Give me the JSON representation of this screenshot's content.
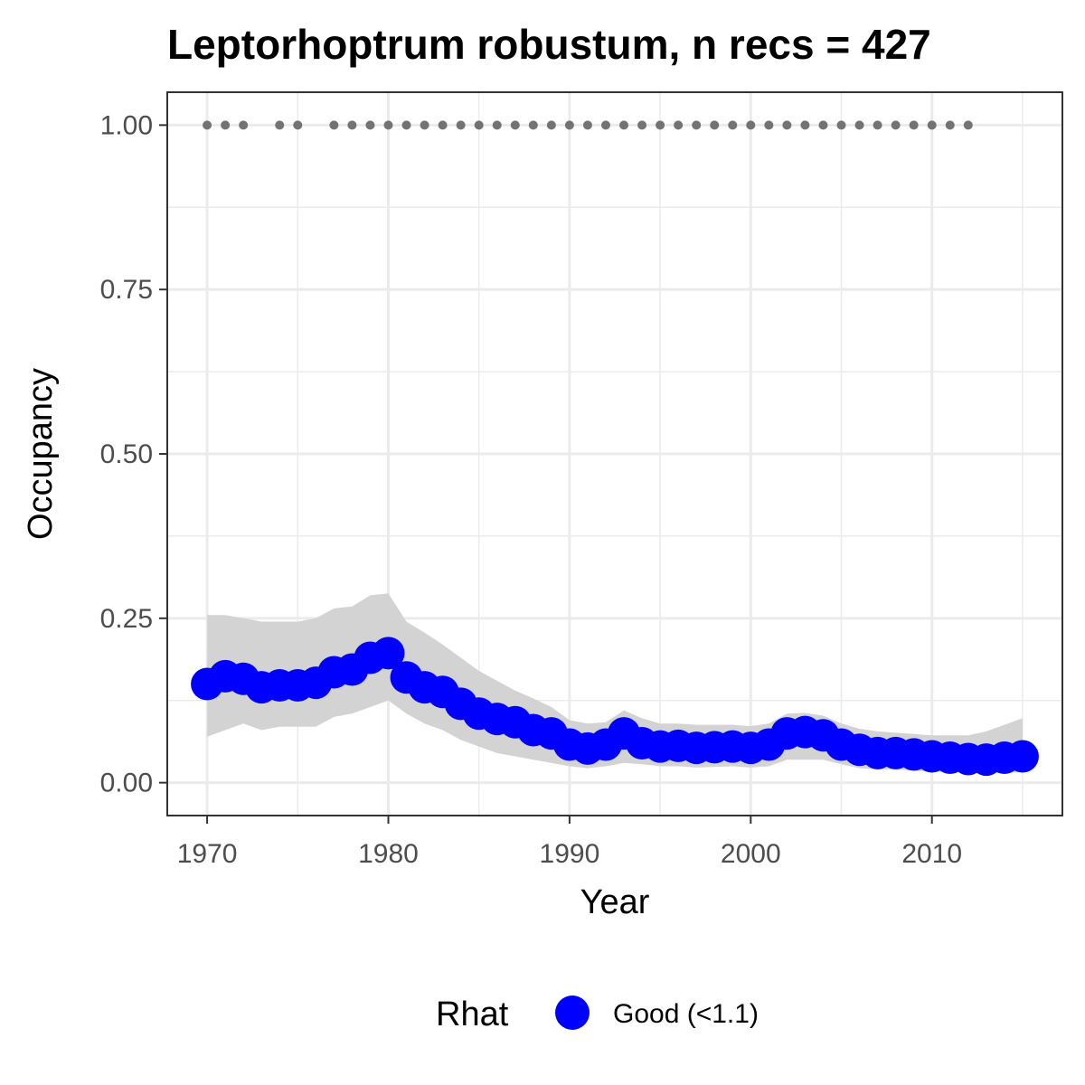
{
  "chart_data": {
    "type": "line",
    "title": "Leptorhoptrum robustum, n recs = 427",
    "xlabel": "Year",
    "ylabel": "Occupancy",
    "xlim": [
      1967.8,
      2017.2
    ],
    "ylim": [
      -0.05,
      1.05
    ],
    "x_ticks": [
      1970,
      1980,
      1990,
      2000,
      2010
    ],
    "x_tick_labels": [
      "1970",
      "1980",
      "1990",
      "2000",
      "2010"
    ],
    "y_ticks": [
      0,
      0.25,
      0.5,
      0.75,
      1.0
    ],
    "y_tick_labels": [
      "0.00",
      "0.25",
      "0.50",
      "0.75",
      "1.00"
    ],
    "grid": true,
    "legend": {
      "position": "bottom",
      "title": "Rhat",
      "entries": [
        {
          "label": "Good (<1.1)",
          "color": "#0000ff"
        }
      ]
    },
    "colors": {
      "series": "#0000ff",
      "ribbon": "#d3d3d3",
      "records": "#737373",
      "grid": "#ebebeb",
      "panel_border": "#333333"
    },
    "series": [
      {
        "name": "Good (<1.1)",
        "x": [
          1970,
          1971,
          1972,
          1973,
          1974,
          1975,
          1976,
          1977,
          1978,
          1979,
          1980,
          1981,
          1982,
          1983,
          1984,
          1985,
          1986,
          1987,
          1988,
          1989,
          1990,
          1991,
          1992,
          1993,
          1994,
          1995,
          1996,
          1997,
          1998,
          1999,
          2000,
          2001,
          2002,
          2003,
          2004,
          2005,
          2006,
          2007,
          2008,
          2009,
          2010,
          2011,
          2012,
          2013,
          2014,
          2015
        ],
        "values": [
          0.15,
          0.162,
          0.158,
          0.145,
          0.148,
          0.148,
          0.152,
          0.168,
          0.172,
          0.19,
          0.197,
          0.16,
          0.145,
          0.138,
          0.12,
          0.105,
          0.097,
          0.092,
          0.08,
          0.075,
          0.058,
          0.052,
          0.058,
          0.075,
          0.06,
          0.055,
          0.056,
          0.053,
          0.054,
          0.055,
          0.053,
          0.058,
          0.075,
          0.077,
          0.072,
          0.058,
          0.05,
          0.045,
          0.045,
          0.043,
          0.04,
          0.038,
          0.036,
          0.035,
          0.038,
          0.04
        ],
        "lower": [
          0.07,
          0.08,
          0.09,
          0.08,
          0.085,
          0.085,
          0.085,
          0.1,
          0.105,
          0.115,
          0.125,
          0.105,
          0.09,
          0.08,
          0.065,
          0.055,
          0.045,
          0.04,
          0.035,
          0.03,
          0.025,
          0.022,
          0.025,
          0.03,
          0.028,
          0.025,
          0.025,
          0.023,
          0.024,
          0.025,
          0.023,
          0.025,
          0.035,
          0.035,
          0.035,
          0.028,
          0.022,
          0.02,
          0.02,
          0.018,
          0.017,
          0.016,
          0.015,
          0.014,
          0.015,
          0.016
        ],
        "upper": [
          0.255,
          0.255,
          0.25,
          0.245,
          0.245,
          0.245,
          0.25,
          0.265,
          0.268,
          0.285,
          0.288,
          0.245,
          0.228,
          0.21,
          0.19,
          0.17,
          0.155,
          0.14,
          0.128,
          0.115,
          0.095,
          0.09,
          0.092,
          0.11,
          0.098,
          0.09,
          0.09,
          0.088,
          0.088,
          0.088,
          0.086,
          0.09,
          0.105,
          0.106,
          0.102,
          0.09,
          0.082,
          0.078,
          0.076,
          0.074,
          0.072,
          0.072,
          0.072,
          0.078,
          0.088,
          0.098
        ]
      }
    ],
    "record_years": {
      "y": 1.0,
      "x": [
        1970,
        1971,
        1972,
        1974,
        1975,
        1977,
        1978,
        1979,
        1980,
        1981,
        1982,
        1983,
        1984,
        1985,
        1986,
        1987,
        1988,
        1989,
        1990,
        1991,
        1992,
        1993,
        1994,
        1995,
        1996,
        1997,
        1998,
        1999,
        2000,
        2001,
        2002,
        2003,
        2004,
        2005,
        2006,
        2007,
        2008,
        2009,
        2010,
        2011,
        2012
      ]
    }
  }
}
